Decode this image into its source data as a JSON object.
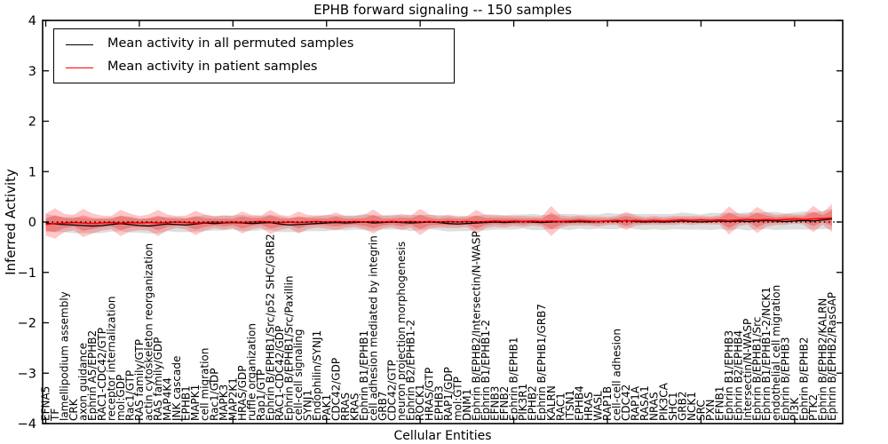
{
  "chart_data": {
    "type": "line",
    "title": "EPHB forward signaling -- 150 samples",
    "xlabel": "Cellular Entities",
    "ylabel": "Inferred Activity",
    "ylim": [
      -4,
      4
    ],
    "yticks": [
      -4,
      -3,
      -2,
      -1,
      0,
      1,
      2,
      3,
      4
    ],
    "xtick_step": 10,
    "grid": false,
    "legend_position": "upper left",
    "legend": [
      {
        "label": "Mean activity in all permuted samples",
        "color": "#000000"
      },
      {
        "label": "Mean activity in patient samples",
        "color": "#ff0000"
      }
    ],
    "zero_line": {
      "style": "dotted",
      "color": "#000000",
      "y": 0
    },
    "colors": {
      "permuted_mean_line": "#000000",
      "patient_mean_line": "#ff0000",
      "patient_band_fill": "rgba(255,0,0,0.27)",
      "permuted_band_fill": "rgba(0,0,0,0.13)",
      "frame": "#000000"
    },
    "categories": [
      "EFNA5",
      "TF",
      "lamellipodium assembly",
      "CRK",
      "axon guidance",
      "Ephrin A5/EPHB2",
      "RAC1-CDC42/GTP",
      "receptor internalization",
      "mol:GDP",
      "Rac1/GTP",
      "RAS family/GTP",
      "actin cytoskeleton reorganization",
      "RAS family/GDP",
      "MAP4K4",
      "JNK cascade",
      "EPHB1",
      "MAPK1",
      "cell migration",
      "Rac1/GDP",
      "MAPK3",
      "MAP2K1",
      "HRAS/GDP",
      "ruffle organization",
      "Rap1/GTP",
      "Ephrin B/EPHB1/Src/p52 SHC/GRB2",
      "RAC1-CDC42/GDP",
      "Ephrin B/EPHB1/Src/Paxillin",
      "cell-cell signaling",
      "SYNJ1",
      "Endophilin/SYNJ1",
      "PAK1",
      "CDC42/GDP",
      "RRAS",
      "KRAS",
      "Ephrin B1/EPHB1",
      "cell adhesion mediated by integrin",
      "GRB7",
      "CDC42/GTP",
      "neuron projection morphogenesis",
      "Ephrin B2/EPHB1-2",
      "ROCK1",
      "HRAS/GTP",
      "EPHB3",
      "RAP1/GDP",
      "mol:GTP",
      "DNM1",
      "Ephrin B/EPHB2/Intersectin/N-WASP",
      "Ephrin B1/EPHB1-2",
      "EFNB3",
      "EFNB2",
      "Ephrin B/EPHB1",
      "PIK3R1",
      "EPHB2",
      "Ephrin B/EPHB1/GRB7",
      "KALRN",
      "RAC1",
      "ITSN1",
      "EPHB4",
      "HRAS",
      "WASL",
      "RAP1B",
      "cell-cell adhesion",
      "CDC42",
      "RAP1A",
      "RASA1",
      "NRAS",
      "PIK3CA",
      "SHC1",
      "GRB2",
      "NCK1",
      "SRC",
      "PXN",
      "EFNB1",
      "Ephrin B1/EPHB3",
      "Ephrin B2/EPHB4",
      "Intersectin/N-WASP",
      "Ephrin B/EPHB1/Src",
      "Ephrin B1/EPHB1-2/NCK1",
      "endothelial cell migration",
      "Ephrin B/EPHB3",
      "PI3K",
      "Ephrin B/EPHB2",
      "PTK2",
      "Ephrin B/EPHB2/KALRN",
      "Ephrin B/EPHB2/RasGAP"
    ],
    "series": [
      {
        "name": "Mean activity in all permuted samples",
        "values": [
          -0.02,
          -0.04,
          -0.05,
          -0.06,
          -0.07,
          -0.08,
          -0.07,
          -0.05,
          -0.03,
          -0.05,
          -0.07,
          -0.08,
          -0.06,
          -0.04,
          -0.05,
          -0.06,
          -0.04,
          -0.02,
          -0.03,
          -0.02,
          -0.01,
          -0.02,
          -0.03,
          -0.02,
          -0.01,
          -0.04,
          -0.06,
          -0.05,
          -0.04,
          -0.03,
          -0.02,
          -0.01,
          -0.02,
          -0.01,
          0.0,
          -0.02,
          -0.01,
          0.0,
          -0.01,
          -0.02,
          -0.01,
          0.0,
          -0.01,
          -0.03,
          -0.04,
          -0.03,
          -0.02,
          -0.01,
          0.0,
          -0.01,
          0.0,
          0.01,
          0.0,
          -0.01,
          0.0,
          0.01,
          0.0,
          0.01,
          0.0,
          0.01,
          0.02,
          0.01,
          0.03,
          0.01,
          0.0,
          0.01,
          0.0,
          0.01,
          0.02,
          0.01,
          0.0,
          0.01,
          0.02,
          0.01,
          0.02,
          0.01,
          0.02,
          0.03,
          0.02,
          0.01,
          0.02,
          0.03,
          0.02,
          0.04,
          0.06
        ]
      },
      {
        "name": "Mean activity in patient samples",
        "values": [
          -0.05,
          -0.03,
          -0.02,
          -0.01,
          -0.02,
          -0.03,
          -0.02,
          -0.01,
          -0.02,
          -0.01,
          -0.02,
          -0.01,
          -0.02,
          -0.01,
          0.0,
          -0.01,
          -0.02,
          -0.01,
          0.0,
          -0.01,
          0.0,
          -0.01,
          0.0,
          0.01,
          0.0,
          -0.01,
          0.0,
          -0.01,
          0.0,
          0.01,
          0.0,
          0.01,
          0.0,
          0.01,
          0.0,
          0.01,
          0.0,
          0.01,
          0.0,
          0.01,
          0.0,
          0.01,
          0.0,
          0.01,
          0.0,
          0.01,
          0.0,
          0.01,
          0.02,
          0.01,
          0.02,
          0.01,
          0.02,
          0.01,
          0.02,
          0.01,
          0.02,
          0.03,
          0.02,
          0.01,
          0.02,
          0.03,
          0.02,
          0.03,
          0.02,
          0.03,
          0.02,
          0.03,
          0.04,
          0.03,
          0.04,
          0.03,
          0.04,
          0.03,
          0.04,
          0.05,
          0.04,
          0.05,
          0.04,
          0.05,
          0.06,
          0.05,
          0.06,
          0.07,
          0.08
        ]
      }
    ],
    "patient_band_halfwidth": [
      0.22,
      0.3,
      0.18,
      0.15,
      0.28,
      0.2,
      0.15,
      0.13,
      0.26,
      0.18,
      0.14,
      0.16,
      0.26,
      0.16,
      0.12,
      0.14,
      0.24,
      0.16,
      0.12,
      0.14,
      0.12,
      0.22,
      0.14,
      0.12,
      0.24,
      0.15,
      0.12,
      0.22,
      0.14,
      0.12,
      0.13,
      0.18,
      0.12,
      0.11,
      0.14,
      0.24,
      0.13,
      0.11,
      0.16,
      0.12,
      0.26,
      0.14,
      0.11,
      0.13,
      0.12,
      0.11,
      0.24,
      0.13,
      0.11,
      0.12,
      0.1,
      0.11,
      0.09,
      0.1,
      0.3,
      0.12,
      0.09,
      0.1,
      0.09,
      0.1,
      0.08,
      0.09,
      0.18,
      0.1,
      0.08,
      0.09,
      0.08,
      0.09,
      0.08,
      0.09,
      0.08,
      0.08,
      0.09,
      0.28,
      0.12,
      0.1,
      0.26,
      0.14,
      0.1,
      0.11,
      0.09,
      0.1,
      0.26,
      0.12,
      0.28
    ],
    "permuted_band_halfwidth": [
      0.18,
      0.16,
      0.15,
      0.16,
      0.15,
      0.14,
      0.15,
      0.14,
      0.15,
      0.16,
      0.14,
      0.15,
      0.16,
      0.14,
      0.15,
      0.14,
      0.15,
      0.16,
      0.14,
      0.15,
      0.14,
      0.16,
      0.15,
      0.14,
      0.15,
      0.16,
      0.14,
      0.15,
      0.14,
      0.15,
      0.16,
      0.14,
      0.15,
      0.14,
      0.16,
      0.15,
      0.14,
      0.15,
      0.14,
      0.16,
      0.15,
      0.14,
      0.15,
      0.16,
      0.14,
      0.15,
      0.14,
      0.16,
      0.15,
      0.14,
      0.15,
      0.14,
      0.16,
      0.15,
      0.14,
      0.15,
      0.16,
      0.14,
      0.15,
      0.14,
      0.16,
      0.15,
      0.14,
      0.15,
      0.16,
      0.15,
      0.16,
      0.15,
      0.17,
      0.16,
      0.15,
      0.17,
      0.16,
      0.17,
      0.16,
      0.18,
      0.16,
      0.17,
      0.18,
      0.16,
      0.17,
      0.18,
      0.17,
      0.18,
      0.2
    ]
  }
}
